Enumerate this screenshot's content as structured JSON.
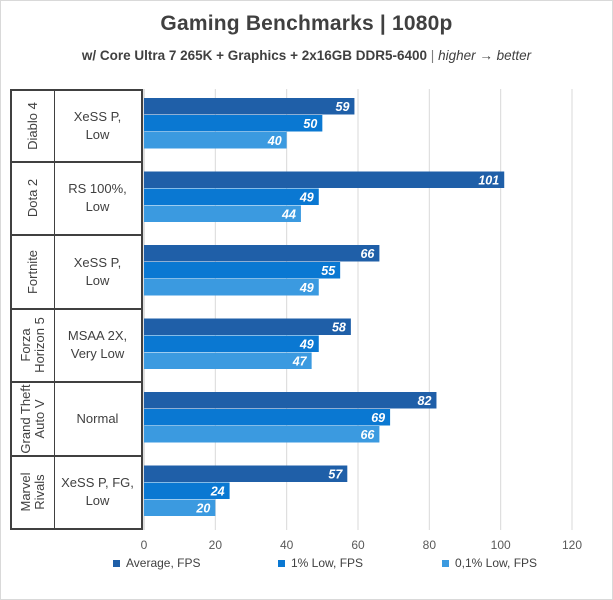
{
  "chart_data": {
    "type": "bar",
    "orientation": "horizontal",
    "title": "Gaming Benchmarks | 1080p",
    "subtitle_bold": "w/ Core Ultra 7 265K + Graphics + 2x16GB DDR5-6400",
    "subtitle_sep": "|",
    "subtitle_italic": "higher → better",
    "categories": [
      {
        "game": "Diablo 4",
        "setting": "XeSS P,\nLow"
      },
      {
        "game": "Dota 2",
        "setting": "RS 100%,\nLow"
      },
      {
        "game": "Fortnite",
        "setting": "XeSS P,\nLow"
      },
      {
        "game": "Forza\nHorizon 5",
        "setting": "MSAA 2X,\nVery Low"
      },
      {
        "game": "Grand Theft\nAuto V",
        "setting": "Normal"
      },
      {
        "game": "Marvel\nRivals",
        "setting": "XeSS P, FG,\nLow"
      }
    ],
    "series": [
      {
        "name": "Average, FPS",
        "color": "#1f5fa8",
        "values": [
          59,
          101,
          66,
          58,
          82,
          57
        ]
      },
      {
        "name": "1% Low, FPS",
        "color": "#0a78d2",
        "values": [
          50,
          49,
          55,
          49,
          69,
          24
        ]
      },
      {
        "name": "0,1% Low, FPS",
        "color": "#3b9ae0",
        "values": [
          40,
          44,
          49,
          47,
          66,
          20
        ]
      }
    ],
    "xlim": [
      0,
      120
    ],
    "xticks": [
      "0",
      "20",
      "40",
      "60",
      "80",
      "100",
      "120"
    ],
    "grid": true,
    "legend_position": "bottom"
  }
}
